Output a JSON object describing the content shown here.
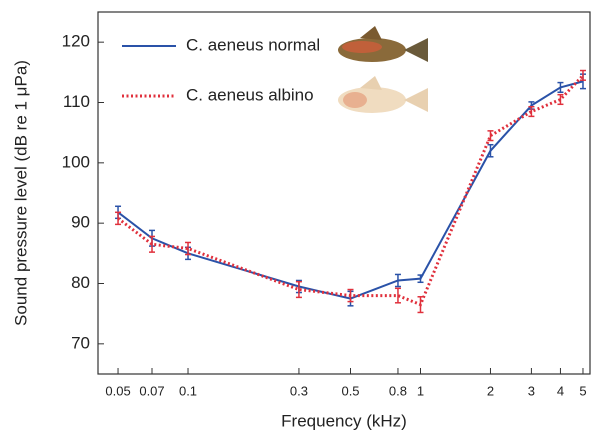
{
  "chart_data": {
    "type": "line",
    "x_label": "Frequency (kHz)",
    "y_label": "Sound pressure level (dB re 1 μPa)",
    "xscale": "log",
    "xlim": [
      0.041,
      5.36
    ],
    "ylim": [
      65,
      125
    ],
    "xticks": [
      0.05,
      0.07,
      0.1,
      0.3,
      0.5,
      0.8,
      1,
      2,
      3,
      4,
      5
    ],
    "yticks": [
      70,
      80,
      90,
      100,
      110,
      120
    ],
    "x": [
      0.05,
      0.07,
      0.1,
      0.3,
      0.5,
      0.8,
      1,
      2,
      3,
      4,
      5
    ],
    "series": [
      {
        "name": "C. aeneus normal",
        "color": "#2a52a8",
        "dash": "solid",
        "values": [
          91.8,
          87.5,
          85,
          79.5,
          77.5,
          80.5,
          80.8,
          102,
          109.5,
          112.5,
          113.5
        ],
        "errors": [
          1,
          1.3,
          1,
          1,
          1.2,
          1,
          0.6,
          1,
          0.6,
          0.8,
          1.2
        ]
      },
      {
        "name": "C. aeneus albino",
        "color": "#e0303c",
        "dash": "dotted",
        "values": [
          90.8,
          86.5,
          85.8,
          79,
          78,
          78,
          76.5,
          104.5,
          108.5,
          110.5,
          114.5
        ],
        "errors": [
          1,
          1.3,
          1,
          1.3,
          1,
          1.2,
          1.3,
          0.8,
          0.8,
          0.8,
          0.8
        ]
      }
    ],
    "legend": "upper-left"
  }
}
